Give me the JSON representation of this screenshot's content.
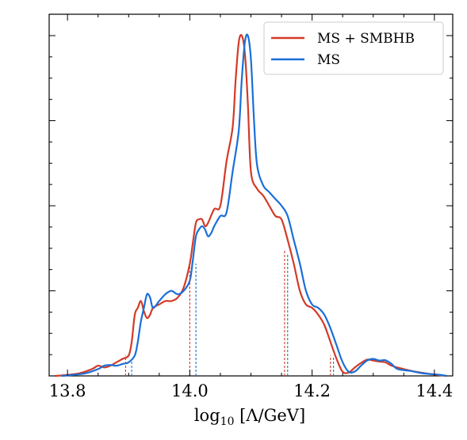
{
  "chart_data": {
    "type": "line",
    "title": "",
    "xlabel": "log10 [Λ/GeV]",
    "ylabel": "",
    "xlim": [
      13.77,
      14.43
    ],
    "ylim": [
      0,
      1.0
    ],
    "x_ticks": [
      13.8,
      14.0,
      14.2,
      14.4
    ],
    "x_tick_labels": [
      "13.8",
      "14.0",
      "14.2",
      "14.4"
    ],
    "y_ticks_labeled": false,
    "grid": false,
    "legend": {
      "placement": "top-right",
      "entries": [
        "MS + SMBHB",
        "MS"
      ]
    },
    "series": [
      {
        "name": "MS + SMBHB",
        "color": "#d33a26",
        "x": [
          13.78,
          13.8,
          13.82,
          13.84,
          13.85,
          13.86,
          13.87,
          13.88,
          13.89,
          13.9,
          13.905,
          13.91,
          13.915,
          13.92,
          13.925,
          13.93,
          13.935,
          13.94,
          13.95,
          13.96,
          13.97,
          13.98,
          13.99,
          14.0,
          14.005,
          14.01,
          14.015,
          14.02,
          14.025,
          14.03,
          14.04,
          14.05,
          14.06,
          14.07,
          14.075,
          14.08,
          14.085,
          14.09,
          14.095,
          14.1,
          14.11,
          14.12,
          14.13,
          14.14,
          14.15,
          14.16,
          14.17,
          14.18,
          14.19,
          14.2,
          14.21,
          14.22,
          14.23,
          14.24,
          14.25,
          14.26,
          14.27,
          14.28,
          14.29,
          14.3,
          14.31,
          14.32,
          14.33,
          14.35,
          14.37,
          14.4,
          14.42
        ],
        "y": [
          0.0,
          0.003,
          0.008,
          0.02,
          0.03,
          0.025,
          0.03,
          0.04,
          0.05,
          0.06,
          0.1,
          0.18,
          0.2,
          0.22,
          0.19,
          0.17,
          0.18,
          0.2,
          0.21,
          0.22,
          0.22,
          0.23,
          0.26,
          0.33,
          0.39,
          0.45,
          0.46,
          0.46,
          0.44,
          0.45,
          0.49,
          0.5,
          0.63,
          0.73,
          0.87,
          0.98,
          1.0,
          0.95,
          0.8,
          0.6,
          0.55,
          0.53,
          0.5,
          0.47,
          0.46,
          0.4,
          0.33,
          0.25,
          0.21,
          0.2,
          0.18,
          0.15,
          0.1,
          0.05,
          0.012,
          0.01,
          0.025,
          0.038,
          0.048,
          0.045,
          0.042,
          0.04,
          0.03,
          0.02,
          0.012,
          0.004,
          0.0
        ]
      },
      {
        "name": "MS",
        "color": "#1a6fd8",
        "x": [
          13.79,
          13.81,
          13.83,
          13.85,
          13.86,
          13.87,
          13.88,
          13.89,
          13.9,
          13.91,
          13.915,
          13.92,
          13.925,
          13.93,
          13.935,
          13.94,
          13.95,
          13.96,
          13.97,
          13.98,
          13.99,
          14.0,
          14.005,
          14.01,
          14.015,
          14.02,
          14.025,
          14.03,
          14.035,
          14.04,
          14.05,
          14.06,
          14.07,
          14.08,
          14.085,
          14.09,
          14.095,
          14.1,
          14.105,
          14.11,
          14.12,
          14.13,
          14.14,
          14.15,
          14.16,
          14.17,
          14.18,
          14.19,
          14.2,
          14.21,
          14.22,
          14.23,
          14.24,
          14.25,
          14.26,
          14.27,
          14.28,
          14.29,
          14.3,
          14.31,
          14.32,
          14.33,
          14.34,
          14.36,
          14.38,
          14.41,
          14.42
        ],
        "y": [
          0.0,
          0.003,
          0.008,
          0.02,
          0.03,
          0.032,
          0.03,
          0.035,
          0.04,
          0.06,
          0.1,
          0.16,
          0.2,
          0.24,
          0.23,
          0.2,
          0.22,
          0.24,
          0.25,
          0.24,
          0.25,
          0.28,
          0.34,
          0.41,
          0.43,
          0.44,
          0.43,
          0.41,
          0.42,
          0.44,
          0.47,
          0.48,
          0.6,
          0.72,
          0.87,
          0.98,
          1.0,
          0.93,
          0.75,
          0.62,
          0.56,
          0.54,
          0.52,
          0.5,
          0.47,
          0.4,
          0.33,
          0.25,
          0.21,
          0.2,
          0.18,
          0.14,
          0.09,
          0.04,
          0.012,
          0.013,
          0.03,
          0.045,
          0.05,
          0.045,
          0.046,
          0.035,
          0.02,
          0.015,
          0.008,
          0.003,
          0.0
        ]
      }
    ],
    "intervals": [
      {
        "series": "MS + SMBHB",
        "x": [
          13.895,
          14.0,
          14.155,
          14.23
        ],
        "heights": [
          0.06,
          0.34,
          0.37,
          0.06
        ]
      },
      {
        "series": "MS",
        "x": [
          13.905,
          14.01,
          14.16,
          14.235
        ],
        "heights": [
          0.05,
          0.33,
          0.36,
          0.055
        ]
      }
    ]
  }
}
